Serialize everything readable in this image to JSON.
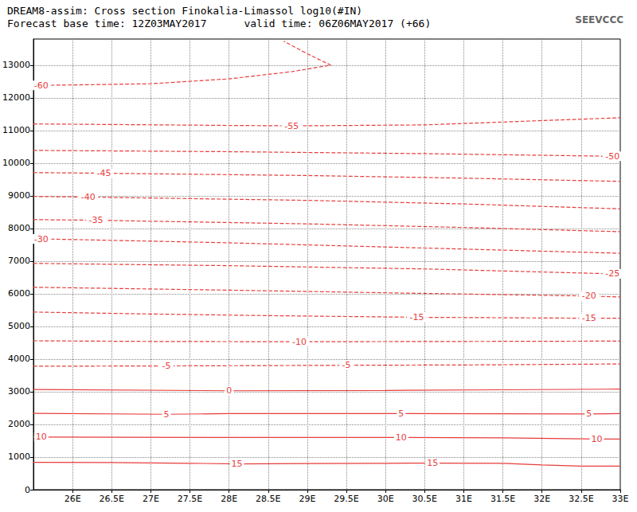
{
  "chart_data": {
    "type": "line",
    "title": "DREAM8-assim: Cross section Finokalia-Limassol log10(#IN)",
    "subtitle": "Forecast base time: 12Z03MAY2017      valid time: 06Z06MAY2017 (+66)",
    "annotations": [
      "SEEVCCC"
    ],
    "xlim": [
      25.5,
      33
    ],
    "ylim": [
      0,
      13800
    ],
    "xticks": [
      {
        "value": 26,
        "label": "26E"
      },
      {
        "value": 26.5,
        "label": "26.5E"
      },
      {
        "value": 27,
        "label": "27E"
      },
      {
        "value": 27.5,
        "label": "27.5E"
      },
      {
        "value": 28,
        "label": "28E"
      },
      {
        "value": 28.5,
        "label": "28.5E"
      },
      {
        "value": 29,
        "label": "29E"
      },
      {
        "value": 29.5,
        "label": "29.5E"
      },
      {
        "value": 30,
        "label": "30E"
      },
      {
        "value": 30.5,
        "label": "30.5E"
      },
      {
        "value": 31,
        "label": "31E"
      },
      {
        "value": 31.5,
        "label": "31.5E"
      },
      {
        "value": 32,
        "label": "32E"
      },
      {
        "value": 32.5,
        "label": "32.5E"
      },
      {
        "value": 33,
        "label": "33E"
      }
    ],
    "yticks": [
      0,
      1000,
      2000,
      3000,
      4000,
      5000,
      6000,
      7000,
      8000,
      9000,
      10000,
      11000,
      12000,
      13000
    ],
    "grid": true,
    "series": [
      {
        "name": "15",
        "color": "#e83c3c",
        "line_style": "solid",
        "label_x": [
          28.1,
          30.6
        ],
        "values": [
          [
            25.5,
            840
          ],
          [
            26.5,
            830
          ],
          [
            27.5,
            810
          ],
          [
            28.1,
            790
          ],
          [
            29,
            800
          ],
          [
            30,
            810
          ],
          [
            30.6,
            815
          ],
          [
            31.5,
            810
          ],
          [
            32,
            760
          ],
          [
            32.5,
            720
          ],
          [
            33,
            720
          ]
        ]
      },
      {
        "name": "10",
        "color": "#e83c3c",
        "line_style": "solid",
        "label_x": [
          25.6,
          30.2,
          32.7
        ],
        "values": [
          [
            25.5,
            1610
          ],
          [
            25.6,
            1610
          ],
          [
            28,
            1600
          ],
          [
            30.2,
            1600
          ],
          [
            31.5,
            1590
          ],
          [
            32.7,
            1550
          ],
          [
            33,
            1550
          ]
        ]
      },
      {
        "name": "5",
        "color": "#e83c3c",
        "line_style": "solid",
        "label_x": [
          27.2,
          30.2,
          32.6
        ],
        "values": [
          [
            25.5,
            2340
          ],
          [
            27.2,
            2310
          ],
          [
            28,
            2330
          ],
          [
            30.2,
            2330
          ],
          [
            32.6,
            2320
          ],
          [
            33,
            2330
          ]
        ]
      },
      {
        "name": "0",
        "color": "#e83c3c",
        "line_style": "solid",
        "label_x": [
          28
        ],
        "values": [
          [
            25.5,
            3070
          ],
          [
            28,
            3030
          ],
          [
            30,
            3040
          ],
          [
            31.5,
            3060
          ],
          [
            33,
            3080
          ]
        ]
      },
      {
        "name": "-5",
        "color": "#e83c3c",
        "line_style": "dashed",
        "label_x": [
          27.2,
          29.5
        ],
        "values": [
          [
            25.5,
            3780
          ],
          [
            27.2,
            3790
          ],
          [
            29.5,
            3810
          ],
          [
            31,
            3820
          ],
          [
            33,
            3850
          ]
        ]
      },
      {
        "name": "-10",
        "color": "#e83c3c",
        "line_style": "dashed",
        "label_x": [
          28.9
        ],
        "values": [
          [
            25.5,
            4560
          ],
          [
            27,
            4540
          ],
          [
            28.9,
            4530
          ],
          [
            31,
            4540
          ],
          [
            33,
            4550
          ]
        ]
      },
      {
        "name": "-15",
        "color": "#e83c3c",
        "line_style": "dashed",
        "label_x": [
          30.4,
          32.6
        ],
        "values": [
          [
            25.5,
            5440
          ],
          [
            27,
            5380
          ],
          [
            28.5,
            5330
          ],
          [
            30.4,
            5280
          ],
          [
            32.6,
            5250
          ],
          [
            33,
            5250
          ]
        ]
      },
      {
        "name": "-20",
        "color": "#e83c3c",
        "line_style": "dashed",
        "label_x": [
          32.6
        ],
        "values": [
          [
            25.5,
            6200
          ],
          [
            28,
            6110
          ],
          [
            30,
            6030
          ],
          [
            32.6,
            5930
          ],
          [
            33,
            5900
          ]
        ]
      },
      {
        "name": "-25",
        "color": "#e83c3c",
        "line_style": "dashed",
        "label_x": [
          32.9
        ],
        "values": [
          [
            25.5,
            6930
          ],
          [
            28,
            6860
          ],
          [
            30.5,
            6760
          ],
          [
            32.9,
            6610
          ],
          [
            33,
            6600
          ]
        ]
      },
      {
        "name": "-30",
        "color": "#e83c3c",
        "line_style": "dashed",
        "label_x": [
          25.6
        ],
        "values": [
          [
            25.5,
            7680
          ],
          [
            25.6,
            7680
          ],
          [
            28,
            7560
          ],
          [
            30.5,
            7400
          ],
          [
            33,
            7240
          ]
        ]
      },
      {
        "name": "-35",
        "color": "#e83c3c",
        "line_style": "dashed",
        "label_x": [
          26.3
        ],
        "values": [
          [
            25.5,
            8270
          ],
          [
            26.3,
            8250
          ],
          [
            29,
            8140
          ],
          [
            31,
            8030
          ],
          [
            33,
            7900
          ]
        ]
      },
      {
        "name": "-40",
        "color": "#e83c3c",
        "line_style": "dashed",
        "label_x": [
          26.2
        ],
        "values": [
          [
            25.5,
            8980
          ],
          [
            26.2,
            8960
          ],
          [
            29,
            8860
          ],
          [
            31,
            8750
          ],
          [
            33,
            8600
          ]
        ]
      },
      {
        "name": "-45",
        "color": "#e83c3c",
        "line_style": "dashed",
        "label_x": [
          26.4
        ],
        "values": [
          [
            25.5,
            9710
          ],
          [
            26.4,
            9690
          ],
          [
            29,
            9620
          ],
          [
            31,
            9540
          ],
          [
            33,
            9440
          ]
        ]
      },
      {
        "name": "-50",
        "color": "#e83c3c",
        "line_style": "dashed",
        "label_x": [
          32.9
        ],
        "values": [
          [
            25.5,
            10390
          ],
          [
            28,
            10350
          ],
          [
            30.5,
            10290
          ],
          [
            32.9,
            10210
          ],
          [
            33,
            10200
          ]
        ]
      },
      {
        "name": "-55",
        "color": "#e83c3c",
        "line_style": "dashed",
        "label_x": [
          28.8
        ],
        "values": [
          [
            25.5,
            11200
          ],
          [
            28.8,
            11140
          ],
          [
            30.5,
            11170
          ],
          [
            33,
            11390
          ]
        ]
      },
      {
        "name": "-60",
        "color": "#e83c3c",
        "line_style": "dashed",
        "label_x": [
          25.6
        ],
        "values": [
          [
            25.5,
            12380
          ],
          [
            25.6,
            12380
          ],
          [
            27,
            12430
          ],
          [
            28,
            12580
          ],
          [
            28.8,
            12800
          ],
          [
            29.3,
            13000
          ],
          [
            29.0,
            13350
          ],
          [
            28.7,
            13730
          ]
        ]
      }
    ]
  }
}
